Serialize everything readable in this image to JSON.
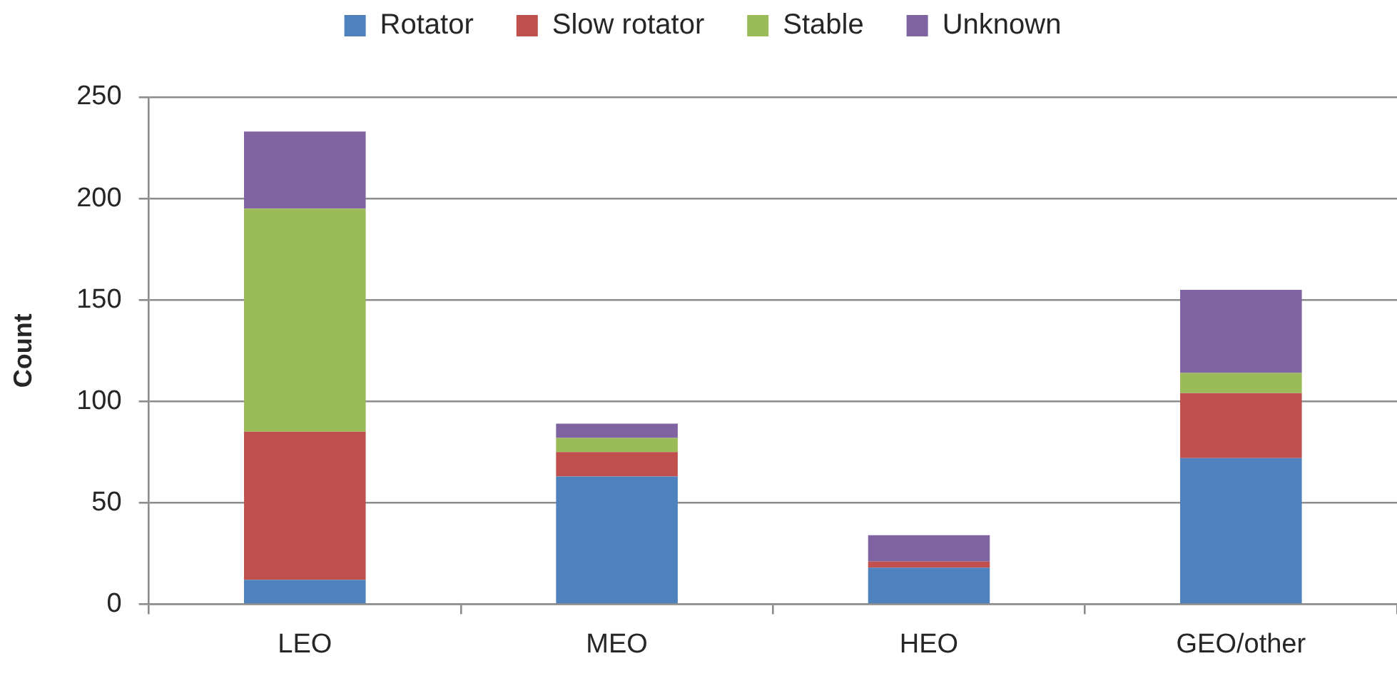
{
  "chart_data": {
    "type": "bar",
    "stacked": true,
    "categories": [
      "LEO",
      "MEO",
      "HEO",
      "GEO/other"
    ],
    "ylabel": "Count",
    "series": [
      {
        "name": "Rotator",
        "color": "#4f81bd",
        "values": [
          12,
          63,
          18,
          72
        ]
      },
      {
        "name": "Slow rotator",
        "color": "#c0504d",
        "values": [
          73,
          12,
          3,
          32
        ]
      },
      {
        "name": "Stable",
        "color": "#9bbb59",
        "values": [
          110,
          7,
          0,
          10
        ]
      },
      {
        "name": "Unknown",
        "color": "#8064a2",
        "values": [
          38,
          7,
          13,
          41
        ]
      }
    ],
    "ylim": [
      0,
      250
    ],
    "yticks": [
      0,
      50,
      100,
      150,
      200,
      250
    ],
    "grid": "y",
    "legend": "top"
  }
}
